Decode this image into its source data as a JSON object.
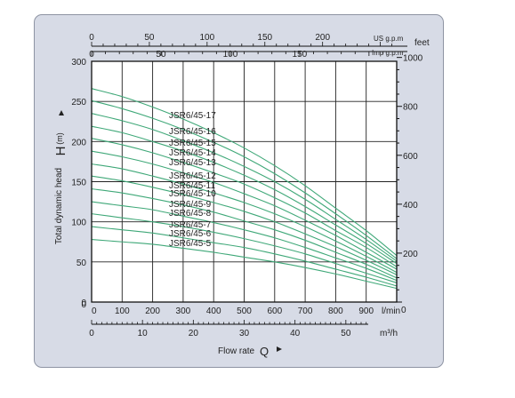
{
  "chart_data": {
    "type": "line",
    "xlabel": "Flow rate",
    "xlabel_symbol": "Q",
    "ylabel": "Total dynamic head",
    "ylabel_symbol": "H",
    "ylabel_unit": "(m)",
    "x_unit_lmin": "l/min",
    "x_unit_m3h": "m³/h",
    "top_unit_usgpm": "US g.p.m",
    "top_unit_impgpm": "Imp g.p.m",
    "right_unit_feet": "feet",
    "xlim": [
      0,
      1000
    ],
    "ylim": [
      0,
      300
    ],
    "x_ticks": [
      "0",
      "100",
      "200",
      "300",
      "400",
      "500",
      "600",
      "700",
      "800",
      "900"
    ],
    "y_ticks": [
      "0",
      "50",
      "100",
      "150",
      "200",
      "250",
      "300"
    ],
    "m3h_ticks": [
      "0",
      "10",
      "20",
      "30",
      "40",
      "50"
    ],
    "usgpm_ticks": [
      "0",
      "50",
      "100",
      "150",
      "200"
    ],
    "impgpm_ticks": [
      "0",
      "50",
      "100",
      "150"
    ],
    "feet_ticks": [
      "200",
      "400",
      "600",
      "800",
      "1000"
    ],
    "grid": true,
    "line_color": "#3fa878",
    "series": [
      {
        "name": "JSR6/45-17",
        "x": [
          0,
          100,
          200,
          300,
          400,
          500,
          600,
          700,
          800,
          900,
          1000
        ],
        "y": [
          266,
          256,
          243,
          228,
          211,
          192,
          170,
          145,
          117,
          89,
          58
        ]
      },
      {
        "name": "JSR6/45-16",
        "x": [
          0,
          100,
          200,
          300,
          400,
          500,
          600,
          700,
          800,
          900,
          1000
        ],
        "y": [
          251,
          241,
          229,
          215,
          199,
          181,
          160,
          136,
          110,
          83,
          54
        ]
      },
      {
        "name": "JSR6/45-15",
        "x": [
          0,
          100,
          200,
          300,
          400,
          500,
          600,
          700,
          800,
          900,
          1000
        ],
        "y": [
          235,
          226,
          215,
          201,
          186,
          169,
          150,
          128,
          103,
          78,
          51
        ]
      },
      {
        "name": "JSR6/45-14",
        "x": [
          0,
          100,
          200,
          300,
          400,
          500,
          600,
          700,
          800,
          900,
          1000
        ],
        "y": [
          219,
          211,
          200,
          188,
          174,
          158,
          140,
          119,
          96,
          73,
          48
        ]
      },
      {
        "name": "JSR6/45-13",
        "x": [
          0,
          100,
          200,
          300,
          400,
          500,
          600,
          700,
          800,
          900,
          1000
        ],
        "y": [
          204,
          196,
          186,
          174,
          161,
          147,
          130,
          111,
          89,
          68,
          44
        ]
      },
      {
        "name": "JSR6/45-12",
        "x": [
          0,
          100,
          200,
          300,
          400,
          500,
          600,
          700,
          800,
          900,
          1000
        ],
        "y": [
          188,
          181,
          172,
          161,
          149,
          135,
          120,
          102,
          83,
          62,
          41
        ]
      },
      {
        "name": "JSR6/45-11",
        "x": [
          0,
          100,
          200,
          300,
          400,
          500,
          600,
          700,
          800,
          900,
          1000
        ],
        "y": [
          172,
          166,
          157,
          147,
          136,
          124,
          110,
          94,
          76,
          57,
          37
        ]
      },
      {
        "name": "JSR6/45-10",
        "x": [
          0,
          100,
          200,
          300,
          400,
          500,
          600,
          700,
          800,
          900,
          1000
        ],
        "y": [
          157,
          151,
          143,
          134,
          124,
          113,
          100,
          85,
          69,
          52,
          34
        ]
      },
      {
        "name": "JSR6/45-9",
        "x": [
          0,
          100,
          200,
          300,
          400,
          500,
          600,
          700,
          800,
          900,
          1000
        ],
        "y": [
          141,
          136,
          129,
          121,
          112,
          101,
          90,
          77,
          62,
          47,
          30
        ]
      },
      {
        "name": "JSR6/45-8",
        "x": [
          0,
          100,
          200,
          300,
          400,
          500,
          600,
          700,
          800,
          900,
          1000
        ],
        "y": [
          125,
          120,
          115,
          107,
          99,
          90,
          80,
          68,
          55,
          42,
          27
        ]
      },
      {
        "name": "JSR6/45-7",
        "x": [
          0,
          100,
          200,
          300,
          400,
          500,
          600,
          700,
          800,
          900,
          1000
        ],
        "y": [
          110,
          105,
          100,
          94,
          87,
          79,
          70,
          60,
          48,
          36,
          24
        ]
      },
      {
        "name": "JSR6/45-6",
        "x": [
          0,
          100,
          200,
          300,
          400,
          500,
          600,
          700,
          800,
          900,
          1000
        ],
        "y": [
          94,
          90,
          86,
          80,
          74,
          68,
          60,
          51,
          41,
          31,
          20
        ]
      },
      {
        "name": "JSR6/45-5",
        "x": [
          0,
          100,
          200,
          300,
          400,
          500,
          600,
          700,
          800,
          900,
          1000
        ],
        "y": [
          78,
          75,
          72,
          67,
          62,
          56,
          50,
          43,
          35,
          26,
          17
        ]
      }
    ]
  }
}
